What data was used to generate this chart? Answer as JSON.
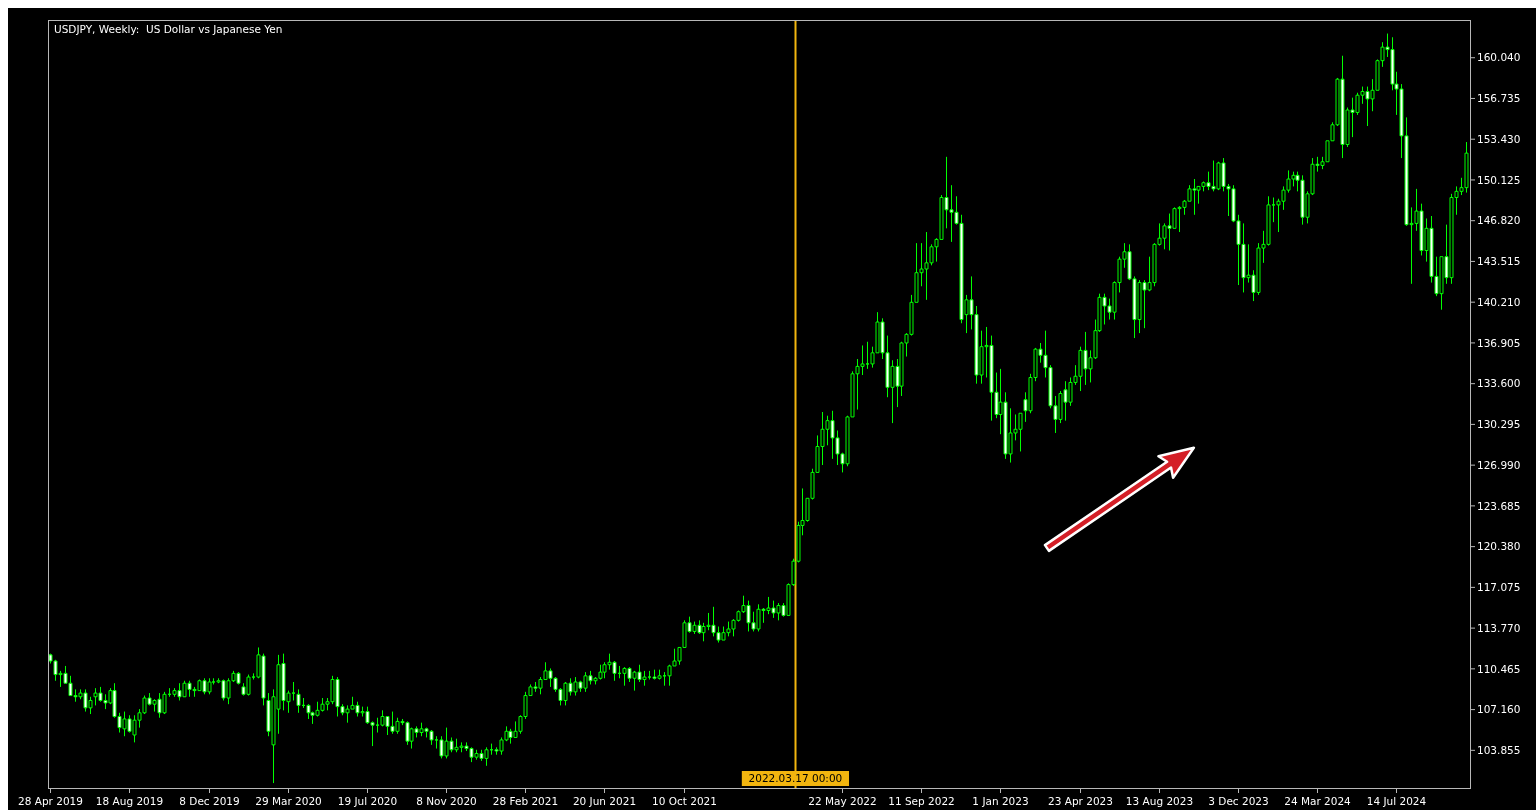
{
  "chart_data": {
    "type": "candlestick",
    "title": "USDJPY, Weekly:  US Dollar vs Japanese Yen",
    "color": "#00ff00",
    "xlim": [
      "2019-04-25",
      "2024-10-26"
    ],
    "ylim": [
      100.8,
      163.1
    ],
    "xticks": [
      {
        "value": "2019-04-28",
        "label": "28 Apr 2019"
      },
      {
        "value": "2019-08-18",
        "label": "18 Aug 2019"
      },
      {
        "value": "2019-12-08",
        "label": "8 Dec 2019"
      },
      {
        "value": "2020-03-29",
        "label": "29 Mar 2020"
      },
      {
        "value": "2020-07-19",
        "label": "19 Jul 2020"
      },
      {
        "value": "2020-11-08",
        "label": "8 Nov 2020"
      },
      {
        "value": "2021-02-28",
        "label": "28 Feb 2021"
      },
      {
        "value": "2021-06-20",
        "label": "20 Jun 2021"
      },
      {
        "value": "2021-10-10",
        "label": "10 Oct 2021"
      },
      {
        "value": "2022-05-22",
        "label": "22 May 2022"
      },
      {
        "value": "2022-09-11",
        "label": "11 Sep 2022"
      },
      {
        "value": "2023-01-01",
        "label": "1 Jan 2023"
      },
      {
        "value": "2023-04-23",
        "label": "23 Apr 2023"
      },
      {
        "value": "2023-08-13",
        "label": "13 Aug 2023"
      },
      {
        "value": "2023-12-03",
        "label": "3 Dec 2023"
      },
      {
        "value": "2024-03-24",
        "label": "24 Mar 2024"
      },
      {
        "value": "2024-07-14",
        "label": "14 Jul 2024"
      }
    ],
    "yticks": [
      103.855,
      {
        "value": 107.16,
        "label": "107.160"
      },
      110.465,
      {
        "value": 113.77,
        "label": "113.770"
      },
      117.075,
      {
        "value": 120.38,
        "label": "120.380"
      },
      123.685,
      {
        "value": 126.99,
        "label": "126.990"
      },
      130.295,
      {
        "value": 133.6,
        "label": "133.600"
      },
      136.905,
      {
        "value": 140.21,
        "label": "140.210"
      },
      143.515,
      {
        "value": 146.82,
        "label": "146.820"
      },
      150.125,
      {
        "value": 153.43,
        "label": "153.430"
      },
      156.735,
      {
        "value": 160.04,
        "label": "160.040"
      }
    ],
    "ref_lines": [
      {
        "axis": "x",
        "value": "2022-03-17T00:00",
        "label": "2022.03.17 00:00",
        "color": "#f2b50f"
      }
    ],
    "x": [
      "2019-04-28",
      "2019-05-05",
      "2019-05-12",
      "2019-05-19",
      "2019-05-26",
      "2019-06-02",
      "2019-06-09",
      "2019-06-16",
      "2019-06-23",
      "2019-06-30",
      "2019-07-07",
      "2019-07-14",
      "2019-07-21",
      "2019-07-28",
      "2019-08-04",
      "2019-08-11",
      "2019-08-18",
      "2019-08-25",
      "2019-09-01",
      "2019-09-08",
      "2019-09-15",
      "2019-09-22",
      "2019-09-29",
      "2019-10-06",
      "2019-10-13",
      "2019-10-20",
      "2019-10-27",
      "2019-11-03",
      "2019-11-10",
      "2019-11-17",
      "2019-11-24",
      "2019-12-01",
      "2019-12-08",
      "2019-12-15",
      "2019-12-22",
      "2019-12-29",
      "2020-01-05",
      "2020-01-12",
      "2020-01-19",
      "2020-01-26",
      "2020-02-02",
      "2020-02-09",
      "2020-02-16",
      "2020-02-23",
      "2020-03-01",
      "2020-03-08",
      "2020-03-15",
      "2020-03-22",
      "2020-03-29",
      "2020-04-05",
      "2020-04-12",
      "2020-04-19",
      "2020-04-26",
      "2020-05-03",
      "2020-05-10",
      "2020-05-17",
      "2020-05-24",
      "2020-05-31",
      "2020-06-07",
      "2020-06-14",
      "2020-06-21",
      "2020-06-28",
      "2020-07-05",
      "2020-07-12",
      "2020-07-19",
      "2020-07-26",
      "2020-08-02",
      "2020-08-09",
      "2020-08-16",
      "2020-08-23",
      "2020-08-30",
      "2020-09-06",
      "2020-09-13",
      "2020-09-20",
      "2020-09-27",
      "2020-10-04",
      "2020-10-11",
      "2020-10-18",
      "2020-10-25",
      "2020-11-01",
      "2020-11-08",
      "2020-11-15",
      "2020-11-22",
      "2020-11-29",
      "2020-12-06",
      "2020-12-13",
      "2020-12-20",
      "2020-12-27",
      "2021-01-03",
      "2021-01-10",
      "2021-01-17",
      "2021-01-24",
      "2021-01-31",
      "2021-02-07",
      "2021-02-14",
      "2021-02-21",
      "2021-02-28",
      "2021-03-07",
      "2021-03-14",
      "2021-03-21",
      "2021-03-28",
      "2021-04-04",
      "2021-04-11",
      "2021-04-18",
      "2021-04-25",
      "2021-05-02",
      "2021-05-09",
      "2021-05-16",
      "2021-05-23",
      "2021-05-30",
      "2021-06-06",
      "2021-06-13",
      "2021-06-20",
      "2021-06-27",
      "2021-07-04",
      "2021-07-11",
      "2021-07-18",
      "2021-07-25",
      "2021-08-01",
      "2021-08-08",
      "2021-08-15",
      "2021-08-22",
      "2021-08-29",
      "2021-09-05",
      "2021-09-12",
      "2021-09-19",
      "2021-09-26",
      "2021-10-03",
      "2021-10-10",
      "2021-10-17",
      "2021-10-24",
      "2021-10-31",
      "2021-11-07",
      "2021-11-14",
      "2021-11-21",
      "2021-11-28",
      "2021-12-05",
      "2021-12-12",
      "2021-12-19",
      "2021-12-26",
      "2022-01-02",
      "2022-01-09",
      "2022-01-16",
      "2022-01-23",
      "2022-01-30",
      "2022-02-06",
      "2022-02-13",
      "2022-02-20",
      "2022-02-27",
      "2022-03-06",
      "2022-03-13",
      "2022-03-20",
      "2022-03-27",
      "2022-04-03",
      "2022-04-10",
      "2022-04-17",
      "2022-04-24",
      "2022-05-01",
      "2022-05-08",
      "2022-05-15",
      "2022-05-22",
      "2022-05-29",
      "2022-06-05",
      "2022-06-12",
      "2022-06-19",
      "2022-06-26",
      "2022-07-03",
      "2022-07-10",
      "2022-07-17",
      "2022-07-24",
      "2022-07-31",
      "2022-08-07",
      "2022-08-14",
      "2022-08-21",
      "2022-08-28",
      "2022-09-04",
      "2022-09-11",
      "2022-09-18",
      "2022-09-25",
      "2022-10-02",
      "2022-10-09",
      "2022-10-16",
      "2022-10-23",
      "2022-10-30",
      "2022-11-06",
      "2022-11-13",
      "2022-11-20",
      "2022-11-27",
      "2022-12-04",
      "2022-12-11",
      "2022-12-18",
      "2022-12-25",
      "2023-01-01",
      "2023-01-08",
      "2023-01-15",
      "2023-01-22",
      "2023-01-29",
      "2023-02-05",
      "2023-02-12",
      "2023-02-19",
      "2023-02-26",
      "2023-03-05",
      "2023-03-12",
      "2023-03-19",
      "2023-03-26",
      "2023-04-02",
      "2023-04-09",
      "2023-04-16",
      "2023-04-23",
      "2023-04-30",
      "2023-05-07",
      "2023-05-14",
      "2023-05-21",
      "2023-05-28",
      "2023-06-04",
      "2023-06-11",
      "2023-06-18",
      "2023-06-25",
      "2023-07-02",
      "2023-07-09",
      "2023-07-16",
      "2023-07-23",
      "2023-07-30",
      "2023-08-06",
      "2023-08-13",
      "2023-08-20",
      "2023-08-27",
      "2023-09-03",
      "2023-09-10",
      "2023-09-17",
      "2023-09-24",
      "2023-10-01",
      "2023-10-08",
      "2023-10-15",
      "2023-10-22",
      "2023-10-29",
      "2023-11-05",
      "2023-11-12",
      "2023-11-19",
      "2023-11-26",
      "2023-12-03",
      "2023-12-10",
      "2023-12-17",
      "2023-12-24",
      "2023-12-31",
      "2024-01-07",
      "2024-01-14",
      "2024-01-21",
      "2024-01-28",
      "2024-02-04",
      "2024-02-11",
      "2024-02-18",
      "2024-02-25",
      "2024-03-03",
      "2024-03-10",
      "2024-03-17",
      "2024-03-24",
      "2024-03-31",
      "2024-04-07",
      "2024-04-14",
      "2024-04-21",
      "2024-04-28",
      "2024-05-05",
      "2024-05-12",
      "2024-05-19",
      "2024-05-26",
      "2024-06-02",
      "2024-06-09",
      "2024-06-16",
      "2024-06-23",
      "2024-06-30",
      "2024-07-07",
      "2024-07-14",
      "2024-07-21",
      "2024-07-28",
      "2024-08-04",
      "2024-08-11",
      "2024-08-18",
      "2024-08-25",
      "2024-09-01",
      "2024-09-08",
      "2024-09-15",
      "2024-09-22",
      "2024-09-29",
      "2024-10-06",
      "2024-10-13",
      "2024-10-20"
    ],
    "ohlc": [
      [
        111.6,
        111.7,
        110.9,
        111.1
      ],
      [
        111.1,
        111.2,
        109.5,
        110.0
      ],
      [
        110.0,
        110.3,
        109.0,
        110.1
      ],
      [
        110.1,
        110.7,
        109.3,
        109.3
      ],
      [
        109.3,
        109.9,
        108.3,
        108.3
      ],
      [
        108.3,
        108.8,
        107.8,
        108.2
      ],
      [
        108.2,
        108.8,
        108.0,
        108.5
      ],
      [
        108.5,
        108.8,
        107.0,
        107.3
      ],
      [
        107.3,
        108.2,
        106.8,
        107.9
      ],
      [
        108.2,
        108.9,
        107.5,
        108.5
      ],
      [
        108.5,
        109.0,
        107.8,
        107.9
      ],
      [
        107.9,
        108.4,
        107.2,
        107.7
      ],
      [
        107.7,
        108.9,
        107.6,
        108.7
      ],
      [
        108.7,
        109.3,
        106.5,
        106.6
      ],
      [
        106.6,
        106.9,
        105.3,
        105.7
      ],
      [
        105.6,
        107.0,
        105.0,
        106.4
      ],
      [
        106.4,
        106.7,
        105.3,
        105.4
      ],
      [
        105.1,
        106.7,
        104.5,
        106.3
      ],
      [
        106.3,
        107.2,
        105.7,
        106.9
      ],
      [
        106.9,
        108.3,
        106.8,
        108.1
      ],
      [
        108.1,
        108.5,
        107.5,
        107.6
      ],
      [
        107.6,
        108.0,
        107.0,
        107.9
      ],
      [
        108.0,
        108.5,
        106.5,
        106.9
      ],
      [
        106.9,
        108.6,
        106.8,
        108.4
      ],
      [
        108.4,
        108.9,
        108.2,
        108.4
      ],
      [
        108.4,
        108.9,
        108.2,
        108.7
      ],
      [
        108.7,
        109.3,
        107.9,
        108.2
      ],
      [
        108.2,
        109.5,
        108.2,
        109.3
      ],
      [
        109.3,
        109.5,
        108.2,
        108.8
      ],
      [
        108.8,
        109.0,
        108.2,
        108.7
      ],
      [
        108.7,
        109.6,
        108.7,
        109.5
      ],
      [
        109.5,
        109.7,
        108.4,
        108.6
      ],
      [
        108.6,
        109.7,
        108.4,
        109.4
      ],
      [
        109.4,
        109.7,
        109.2,
        109.4
      ],
      [
        109.4,
        109.7,
        109.3,
        109.5
      ],
      [
        109.5,
        109.6,
        107.9,
        108.1
      ],
      [
        108.1,
        109.7,
        107.6,
        109.5
      ],
      [
        109.5,
        110.3,
        109.4,
        110.1
      ],
      [
        110.1,
        110.2,
        109.2,
        109.3
      ],
      [
        109.0,
        109.3,
        108.3,
        108.4
      ],
      [
        108.4,
        110.0,
        108.3,
        109.8
      ],
      [
        109.8,
        110.1,
        109.6,
        109.8
      ],
      [
        109.8,
        112.2,
        109.7,
        111.6
      ],
      [
        111.5,
        111.7,
        107.5,
        108.1
      ],
      [
        107.9,
        108.5,
        105.0,
        105.4
      ],
      [
        104.3,
        108.8,
        101.2,
        108.2
      ],
      [
        107.2,
        111.6,
        105.2,
        110.8
      ],
      [
        110.9,
        111.7,
        107.1,
        107.9
      ],
      [
        107.8,
        108.7,
        106.9,
        108.5
      ],
      [
        108.5,
        109.4,
        107.9,
        108.5
      ],
      [
        108.4,
        108.8,
        106.9,
        107.5
      ],
      [
        107.5,
        108.1,
        107.3,
        107.5
      ],
      [
        107.5,
        107.6,
        106.4,
        106.9
      ],
      [
        106.9,
        107.0,
        106.0,
        106.7
      ],
      [
        106.7,
        107.8,
        106.6,
        107.1
      ],
      [
        107.1,
        108.1,
        107.0,
        107.6
      ],
      [
        107.6,
        108.1,
        107.1,
        107.8
      ],
      [
        107.8,
        109.9,
        107.6,
        109.6
      ],
      [
        109.6,
        109.8,
        106.6,
        107.4
      ],
      [
        107.4,
        107.6,
        106.7,
        106.9
      ],
      [
        106.9,
        107.5,
        106.1,
        107.2
      ],
      [
        107.2,
        108.2,
        107.2,
        107.5
      ],
      [
        107.5,
        107.8,
        106.6,
        106.9
      ],
      [
        106.9,
        107.4,
        106.6,
        107.0
      ],
      [
        107.0,
        107.4,
        106.0,
        106.1
      ],
      [
        106.1,
        106.2,
        104.2,
        105.9
      ],
      [
        105.9,
        106.5,
        105.3,
        105.9
      ],
      [
        105.9,
        107.1,
        105.8,
        106.6
      ],
      [
        106.6,
        106.6,
        105.1,
        105.8
      ],
      [
        105.8,
        107.0,
        105.2,
        105.4
      ],
      [
        105.4,
        106.5,
        105.2,
        106.2
      ],
      [
        106.2,
        106.4,
        105.9,
        106.1
      ],
      [
        106.1,
        106.2,
        104.3,
        104.6
      ],
      [
        104.6,
        105.7,
        104.0,
        105.6
      ],
      [
        105.6,
        105.8,
        104.9,
        105.3
      ],
      [
        105.3,
        106.1,
        105.0,
        105.6
      ],
      [
        105.6,
        105.7,
        104.9,
        105.4
      ],
      [
        105.4,
        105.5,
        104.3,
        104.7
      ],
      [
        104.7,
        105.0,
        104.0,
        104.7
      ],
      [
        104.7,
        105.0,
        103.2,
        103.4
      ],
      [
        103.4,
        105.7,
        103.2,
        104.6
      ],
      [
        104.6,
        104.9,
        103.7,
        103.9
      ],
      [
        103.9,
        104.8,
        103.7,
        104.1
      ],
      [
        104.1,
        104.5,
        103.7,
        104.2
      ],
      [
        104.2,
        104.5,
        103.8,
        104.0
      ],
      [
        104.0,
        104.1,
        102.9,
        103.3
      ],
      [
        103.3,
        103.9,
        103.1,
        103.6
      ],
      [
        103.6,
        103.9,
        103.0,
        103.2
      ],
      [
        103.2,
        104.1,
        102.6,
        103.9
      ],
      [
        103.9,
        104.4,
        103.5,
        103.9
      ],
      [
        103.9,
        104.1,
        103.5,
        103.8
      ],
      [
        103.8,
        104.9,
        103.5,
        104.7
      ],
      [
        104.7,
        105.8,
        104.6,
        105.4
      ],
      [
        105.4,
        105.6,
        104.4,
        104.9
      ],
      [
        104.9,
        106.2,
        104.9,
        105.4
      ],
      [
        105.4,
        106.7,
        105.2,
        106.6
      ],
      [
        106.6,
        108.6,
        106.4,
        108.3
      ],
      [
        108.3,
        109.2,
        108.3,
        109.0
      ],
      [
        109.0,
        109.4,
        108.6,
        108.9
      ],
      [
        108.9,
        109.8,
        108.4,
        109.6
      ],
      [
        109.6,
        111.0,
        109.6,
        110.3
      ],
      [
        110.3,
        110.5,
        109.0,
        109.7
      ],
      [
        109.7,
        109.8,
        108.6,
        108.8
      ],
      [
        108.8,
        108.9,
        107.5,
        107.9
      ],
      [
        107.9,
        109.4,
        107.5,
        109.3
      ],
      [
        109.3,
        109.7,
        108.3,
        108.6
      ],
      [
        108.6,
        109.8,
        108.3,
        109.4
      ],
      [
        109.4,
        109.5,
        108.6,
        108.9
      ],
      [
        108.9,
        110.2,
        108.6,
        109.9
      ],
      [
        109.9,
        110.3,
        109.2,
        109.5
      ],
      [
        109.5,
        109.8,
        109.2,
        109.7
      ],
      [
        109.7,
        110.8,
        109.6,
        110.2
      ],
      [
        110.2,
        111.0,
        109.7,
        110.8
      ],
      [
        110.8,
        111.7,
        110.4,
        111.0
      ],
      [
        111.0,
        111.1,
        109.5,
        110.1
      ],
      [
        110.1,
        110.7,
        109.7,
        110.1
      ],
      [
        110.1,
        110.6,
        109.1,
        110.5
      ],
      [
        110.5,
        110.6,
        109.4,
        109.7
      ],
      [
        109.7,
        110.3,
        108.7,
        110.2
      ],
      [
        110.2,
        110.8,
        109.4,
        109.6
      ],
      [
        109.6,
        110.3,
        109.1,
        109.8
      ],
      [
        109.8,
        110.3,
        109.6,
        109.8
      ],
      [
        109.8,
        110.4,
        109.6,
        109.7
      ],
      [
        109.7,
        110.4,
        109.6,
        109.9
      ],
      [
        109.9,
        110.2,
        109.1,
        109.9
      ],
      [
        109.9,
        110.8,
        109.1,
        110.7
      ],
      [
        110.7,
        112.1,
        110.7,
        111.1
      ],
      [
        111.1,
        112.2,
        110.8,
        112.2
      ],
      [
        112.2,
        114.4,
        112.2,
        114.2
      ],
      [
        114.2,
        114.7,
        113.4,
        113.5
      ],
      [
        113.5,
        114.3,
        113.3,
        114.0
      ],
      [
        114.0,
        114.4,
        113.3,
        113.4
      ],
      [
        113.4,
        114.2,
        112.7,
        113.9
      ],
      [
        113.9,
        115.0,
        113.6,
        114.0
      ],
      [
        114.0,
        115.5,
        113.1,
        113.4
      ],
      [
        113.4,
        113.9,
        112.6,
        112.8
      ],
      [
        112.8,
        113.9,
        112.8,
        113.4
      ],
      [
        113.4,
        114.3,
        113.1,
        113.7
      ],
      [
        113.7,
        114.5,
        113.1,
        114.4
      ],
      [
        114.4,
        115.2,
        114.3,
        115.1
      ],
      [
        115.1,
        116.4,
        115.0,
        115.6
      ],
      [
        115.6,
        116.0,
        113.5,
        114.2
      ],
      [
        114.2,
        115.1,
        113.5,
        113.7
      ],
      [
        113.7,
        115.7,
        113.5,
        115.3
      ],
      [
        115.3,
        115.4,
        114.2,
        115.2
      ],
      [
        115.2,
        116.3,
        114.9,
        115.4
      ],
      [
        115.4,
        116.0,
        114.6,
        115.0
      ],
      [
        115.0,
        115.8,
        114.4,
        115.6
      ],
      [
        115.6,
        115.8,
        114.7,
        114.8
      ],
      [
        114.8,
        117.4,
        114.8,
        117.3
      ],
      [
        117.3,
        119.4,
        117.2,
        119.2
      ],
      [
        119.2,
        122.4,
        119.1,
        122.1
      ],
      [
        122.1,
        125.1,
        121.3,
        122.5
      ],
      [
        122.5,
        124.3,
        122.4,
        124.3
      ],
      [
        124.3,
        126.7,
        124.2,
        126.4
      ],
      [
        126.4,
        129.4,
        126.4,
        128.5
      ],
      [
        128.5,
        131.3,
        127.0,
        129.9
      ],
      [
        129.9,
        131.0,
        128.6,
        130.6
      ],
      [
        130.6,
        131.4,
        127.5,
        129.2
      ],
      [
        129.2,
        129.8,
        127.0,
        127.9
      ],
      [
        127.9,
        128.0,
        126.4,
        127.1
      ],
      [
        127.1,
        131.0,
        126.9,
        130.9
      ],
      [
        130.9,
        134.6,
        130.9,
        134.4
      ],
      [
        134.4,
        135.6,
        131.5,
        135.0
      ],
      [
        135.0,
        136.7,
        134.3,
        135.2
      ],
      [
        135.2,
        137.0,
        134.8,
        135.2
      ],
      [
        135.2,
        136.6,
        134.9,
        136.1
      ],
      [
        136.1,
        139.4,
        136.1,
        138.6
      ],
      [
        138.6,
        138.9,
        135.6,
        136.1
      ],
      [
        136.1,
        137.5,
        132.5,
        133.3
      ],
      [
        133.3,
        135.5,
        130.4,
        135.0
      ],
      [
        135.0,
        135.6,
        131.7,
        133.4
      ],
      [
        133.4,
        137.0,
        132.6,
        136.9
      ],
      [
        136.9,
        137.7,
        135.8,
        137.6
      ],
      [
        137.6,
        140.8,
        137.5,
        140.2
      ],
      [
        140.2,
        145.0,
        140.2,
        142.6
      ],
      [
        142.6,
        145.0,
        141.5,
        142.9
      ],
      [
        142.9,
        145.9,
        140.4,
        143.4
      ],
      [
        143.4,
        144.9,
        143.2,
        144.7
      ],
      [
        144.7,
        145.4,
        143.5,
        145.3
      ],
      [
        145.3,
        148.9,
        145.3,
        148.7
      ],
      [
        148.7,
        152.0,
        146.2,
        147.7
      ],
      [
        147.7,
        149.7,
        145.1,
        147.5
      ],
      [
        147.5,
        148.8,
        146.5,
        146.6
      ],
      [
        146.6,
        147.3,
        138.5,
        138.8
      ],
      [
        139.2,
        140.8,
        137.7,
        140.4
      ],
      [
        140.4,
        142.3,
        138.0,
        139.2
      ],
      [
        139.2,
        139.9,
        133.6,
        134.3
      ],
      [
        134.3,
        137.9,
        133.6,
        136.6
      ],
      [
        136.6,
        138.2,
        134.1,
        136.7
      ],
      [
        136.7,
        137.5,
        130.6,
        132.9
      ],
      [
        132.9,
        134.5,
        130.8,
        131.1
      ],
      [
        131.1,
        134.8,
        129.5,
        132.1
      ],
      [
        132.1,
        132.9,
        127.5,
        127.9
      ],
      [
        127.9,
        131.6,
        127.2,
        129.6
      ],
      [
        129.6,
        131.1,
        129.0,
        129.9
      ],
      [
        129.9,
        131.2,
        128.1,
        131.2
      ],
      [
        132.3,
        132.9,
        130.5,
        131.4
      ],
      [
        131.4,
        134.4,
        131.2,
        134.1
      ],
      [
        134.1,
        136.5,
        133.8,
        136.4
      ],
      [
        136.4,
        136.9,
        135.3,
        135.9
      ],
      [
        135.9,
        137.9,
        134.1,
        134.9
      ],
      [
        134.9,
        135.1,
        131.6,
        131.8
      ],
      [
        131.8,
        132.6,
        129.6,
        130.7
      ],
      [
        130.7,
        133.0,
        130.4,
        132.8
      ],
      [
        133.1,
        133.8,
        130.6,
        132.1
      ],
      [
        132.1,
        134.1,
        131.8,
        133.7
      ],
      [
        133.7,
        135.1,
        133.5,
        134.2
      ],
      [
        134.2,
        136.6,
        133.0,
        136.3
      ],
      [
        136.3,
        137.8,
        133.5,
        134.8
      ],
      [
        134.8,
        136.3,
        133.7,
        135.7
      ],
      [
        135.7,
        138.8,
        135.6,
        137.9
      ],
      [
        137.9,
        140.9,
        137.8,
        140.6
      ],
      [
        140.6,
        140.9,
        138.4,
        139.9
      ],
      [
        139.9,
        140.5,
        138.8,
        139.4
      ],
      [
        139.4,
        141.9,
        138.8,
        141.8
      ],
      [
        141.8,
        143.9,
        141.0,
        143.7
      ],
      [
        143.7,
        145.0,
        143.0,
        144.3
      ],
      [
        144.3,
        144.9,
        142.0,
        142.1
      ],
      [
        142.1,
        142.3,
        137.3,
        138.8
      ],
      [
        138.8,
        142.0,
        137.7,
        141.8
      ],
      [
        141.8,
        142.0,
        138.1,
        141.2
      ],
      [
        141.2,
        143.9,
        141.1,
        141.8
      ],
      [
        141.8,
        145.0,
        141.5,
        144.9
      ],
      [
        144.9,
        146.6,
        144.8,
        145.4
      ],
      [
        145.4,
        146.6,
        144.5,
        146.4
      ],
      [
        146.4,
        147.4,
        144.4,
        146.2
      ],
      [
        146.2,
        147.9,
        146.2,
        147.8
      ],
      [
        147.8,
        148.0,
        145.9,
        147.9
      ],
      [
        147.9,
        148.5,
        147.3,
        148.4
      ],
      [
        148.4,
        149.7,
        148.4,
        149.4
      ],
      [
        149.4,
        150.2,
        147.3,
        149.3
      ],
      [
        149.3,
        149.6,
        148.2,
        149.6
      ],
      [
        149.6,
        150.0,
        149.2,
        149.9
      ],
      [
        149.9,
        150.8,
        149.3,
        149.6
      ],
      [
        149.6,
        151.7,
        149.2,
        149.4
      ],
      [
        149.4,
        151.6,
        149.3,
        151.5
      ],
      [
        151.5,
        151.9,
        149.2,
        149.6
      ],
      [
        149.6,
        149.8,
        147.2,
        149.4
      ],
      [
        149.4,
        149.7,
        146.7,
        146.8
      ],
      [
        146.8,
        147.3,
        141.6,
        144.9
      ],
      [
        144.9,
        146.6,
        141.0,
        142.2
      ],
      [
        142.2,
        144.9,
        141.8,
        142.4
      ],
      [
        142.4,
        142.8,
        140.3,
        141.0
      ],
      [
        141.0,
        145.0,
        140.8,
        144.6
      ],
      [
        144.6,
        146.0,
        143.4,
        144.9
      ],
      [
        144.9,
        148.8,
        144.8,
        148.1
      ],
      [
        148.1,
        148.7,
        146.7,
        148.1
      ],
      [
        148.1,
        148.6,
        145.9,
        148.4
      ],
      [
        148.4,
        149.6,
        147.7,
        149.3
      ],
      [
        149.3,
        150.9,
        149.1,
        150.2
      ],
      [
        150.2,
        150.8,
        149.6,
        150.5
      ],
      [
        150.5,
        150.8,
        149.2,
        150.1
      ],
      [
        150.1,
        150.5,
        146.5,
        147.1
      ],
      [
        147.1,
        149.2,
        146.6,
        149.0
      ],
      [
        149.0,
        151.9,
        148.9,
        151.4
      ],
      [
        151.4,
        152.0,
        150.8,
        151.3
      ],
      [
        151.3,
        152.0,
        151.0,
        151.6
      ],
      [
        151.6,
        153.3,
        151.6,
        153.3
      ],
      [
        153.3,
        154.8,
        153.3,
        154.6
      ],
      [
        154.6,
        158.4,
        154.5,
        158.3
      ],
      [
        158.3,
        160.2,
        151.9,
        153.0
      ],
      [
        153.0,
        156.0,
        152.8,
        155.8
      ],
      [
        155.8,
        156.8,
        153.6,
        155.6
      ],
      [
        155.6,
        157.2,
        155.4,
        157.0
      ],
      [
        157.0,
        157.7,
        156.3,
        157.3
      ],
      [
        157.3,
        157.7,
        154.5,
        156.7
      ],
      [
        156.7,
        158.3,
        155.7,
        157.4
      ],
      [
        157.4,
        159.9,
        157.4,
        159.8
      ],
      [
        159.8,
        161.3,
        159.3,
        160.9
      ],
      [
        160.9,
        162.0,
        160.1,
        160.7
      ],
      [
        160.7,
        161.7,
        157.4,
        157.9
      ],
      [
        157.9,
        158.9,
        155.4,
        157.5
      ],
      [
        157.5,
        157.9,
        151.9,
        153.7
      ],
      [
        153.7,
        155.2,
        146.4,
        146.5
      ],
      [
        146.5,
        147.9,
        141.7,
        146.6
      ],
      [
        146.6,
        149.4,
        146.0,
        147.6
      ],
      [
        147.6,
        148.2,
        144.0,
        144.4
      ],
      [
        144.4,
        147.0,
        143.5,
        146.2
      ],
      [
        146.2,
        147.2,
        141.8,
        142.3
      ],
      [
        142.3,
        143.9,
        140.7,
        140.9
      ],
      [
        140.9,
        143.9,
        139.6,
        143.9
      ],
      [
        143.9,
        146.5,
        141.7,
        142.2
      ],
      [
        142.2,
        149.0,
        141.7,
        148.7
      ],
      [
        148.7,
        149.6,
        147.3,
        149.2
      ],
      [
        149.2,
        150.3,
        148.9,
        149.5
      ],
      [
        149.5,
        153.2,
        149.1,
        152.3
      ]
    ]
  }
}
